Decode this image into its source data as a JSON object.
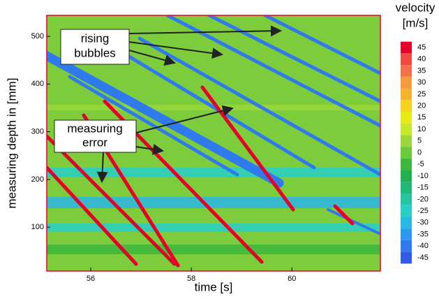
{
  "chart_data": {
    "type": "contour",
    "xlabel": "time [s]",
    "ylabel": "measuring depth in [mm]",
    "xlim": [
      55.125,
      61.76
    ],
    "xticks": [
      56,
      58,
      60
    ],
    "ylim": [
      8,
      544
    ],
    "yticks": [
      100,
      200,
      300,
      400,
      500
    ],
    "colorbar": {
      "title": [
        "velocity",
        "[m/s]"
      ],
      "ticks": [
        45,
        40,
        35,
        30,
        25,
        20,
        15,
        10,
        5,
        0,
        -5,
        -10,
        -15,
        -20,
        -25,
        -30,
        -35,
        -40,
        -45
      ],
      "colors": [
        "#e8002a",
        "#f04a3f",
        "#f4704a",
        "#f79a3f",
        "#f7b32e",
        "#f6d21c",
        "#e9ea14",
        "#c6e82a",
        "#9ad83a",
        "#6cc93a",
        "#3cb83c",
        "#22b052",
        "#20b878",
        "#22c6a0",
        "#28cfc8",
        "#2ab8e6",
        "#2d98ee",
        "#2f7aee",
        "#3259e8"
      ]
    },
    "annotations": [
      {
        "lines": [
          "rising",
          "bubbles"
        ]
      },
      {
        "lines": [
          "measuring",
          "error"
        ]
      }
    ]
  }
}
